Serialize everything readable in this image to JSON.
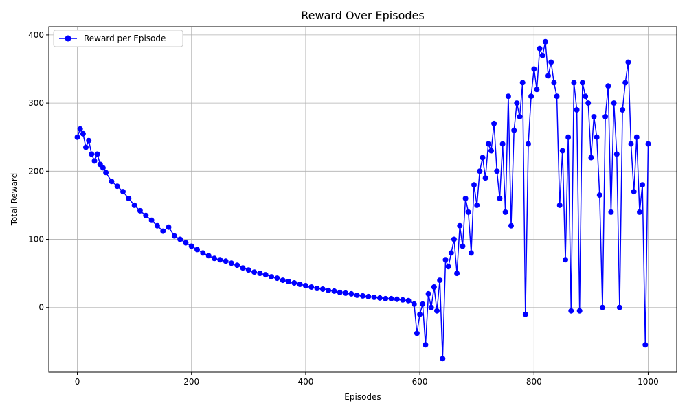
{
  "chart_data": {
    "type": "line",
    "title": "Reward Over Episodes",
    "xlabel": "Episodes",
    "ylabel": "Total Reward",
    "xlim": [
      -50,
      1050
    ],
    "ylim": [
      -95,
      412
    ],
    "xticks": [
      0,
      200,
      400,
      600,
      800,
      1000
    ],
    "yticks": [
      0,
      100,
      200,
      300,
      400
    ],
    "grid": true,
    "legend": {
      "position": "top-left"
    },
    "colors": {
      "series": "#0000ff",
      "grid": "#b0b0b0",
      "axes": "#000000"
    },
    "series": [
      {
        "name": "Reward per Episode",
        "marker": "circle",
        "x": [
          0,
          5,
          10,
          15,
          20,
          25,
          30,
          35,
          40,
          45,
          50,
          60,
          70,
          80,
          90,
          100,
          110,
          120,
          130,
          140,
          150,
          160,
          170,
          180,
          190,
          200,
          210,
          220,
          230,
          240,
          250,
          260,
          270,
          280,
          290,
          300,
          310,
          320,
          330,
          340,
          350,
          360,
          370,
          380,
          390,
          400,
          410,
          420,
          430,
          440,
          450,
          460,
          470,
          480,
          490,
          500,
          510,
          520,
          530,
          540,
          550,
          560,
          570,
          580,
          590,
          595,
          600,
          605,
          610,
          615,
          620,
          625,
          630,
          635,
          640,
          645,
          650,
          655,
          660,
          665,
          670,
          675,
          680,
          685,
          690,
          695,
          700,
          705,
          710,
          715,
          720,
          725,
          730,
          735,
          740,
          745,
          750,
          755,
          760,
          765,
          770,
          775,
          780,
          785,
          790,
          795,
          800,
          805,
          810,
          815,
          820,
          825,
          830,
          835,
          840,
          845,
          850,
          855,
          860,
          865,
          870,
          875,
          880,
          885,
          890,
          895,
          900,
          905,
          910,
          915,
          920,
          925,
          930,
          935,
          940,
          945,
          950,
          955,
          960,
          965,
          970,
          975,
          980,
          985,
          990,
          995,
          1000
        ],
        "values": [
          250,
          262,
          255,
          235,
          245,
          225,
          215,
          225,
          210,
          205,
          198,
          185,
          178,
          170,
          160,
          150,
          142,
          135,
          128,
          120,
          112,
          118,
          105,
          100,
          95,
          90,
          85,
          80,
          76,
          72,
          70,
          68,
          65,
          62,
          58,
          55,
          52,
          50,
          48,
          45,
          43,
          40,
          38,
          36,
          34,
          32,
          30,
          28,
          27,
          25,
          24,
          22,
          21,
          20,
          18,
          17,
          16,
          15,
          14,
          13,
          13,
          12,
          11,
          10,
          5,
          -38,
          -10,
          5,
          -55,
          20,
          0,
          30,
          -5,
          40,
          -75,
          70,
          60,
          80,
          100,
          50,
          120,
          90,
          160,
          140,
          80,
          180,
          150,
          200,
          220,
          190,
          240,
          230,
          270,
          200,
          160,
          240,
          140,
          310,
          120,
          260,
          300,
          280,
          330,
          -10,
          240,
          310,
          350,
          320,
          380,
          370,
          390,
          340,
          360,
          330,
          310,
          150,
          230,
          70,
          250,
          -5,
          330,
          290,
          -5,
          330,
          310,
          300,
          220,
          280,
          250,
          165,
          0,
          280,
          325,
          140,
          300,
          225,
          0,
          290,
          330,
          360,
          240,
          170,
          250,
          140,
          180,
          -55,
          240
        ]
      }
    ]
  }
}
